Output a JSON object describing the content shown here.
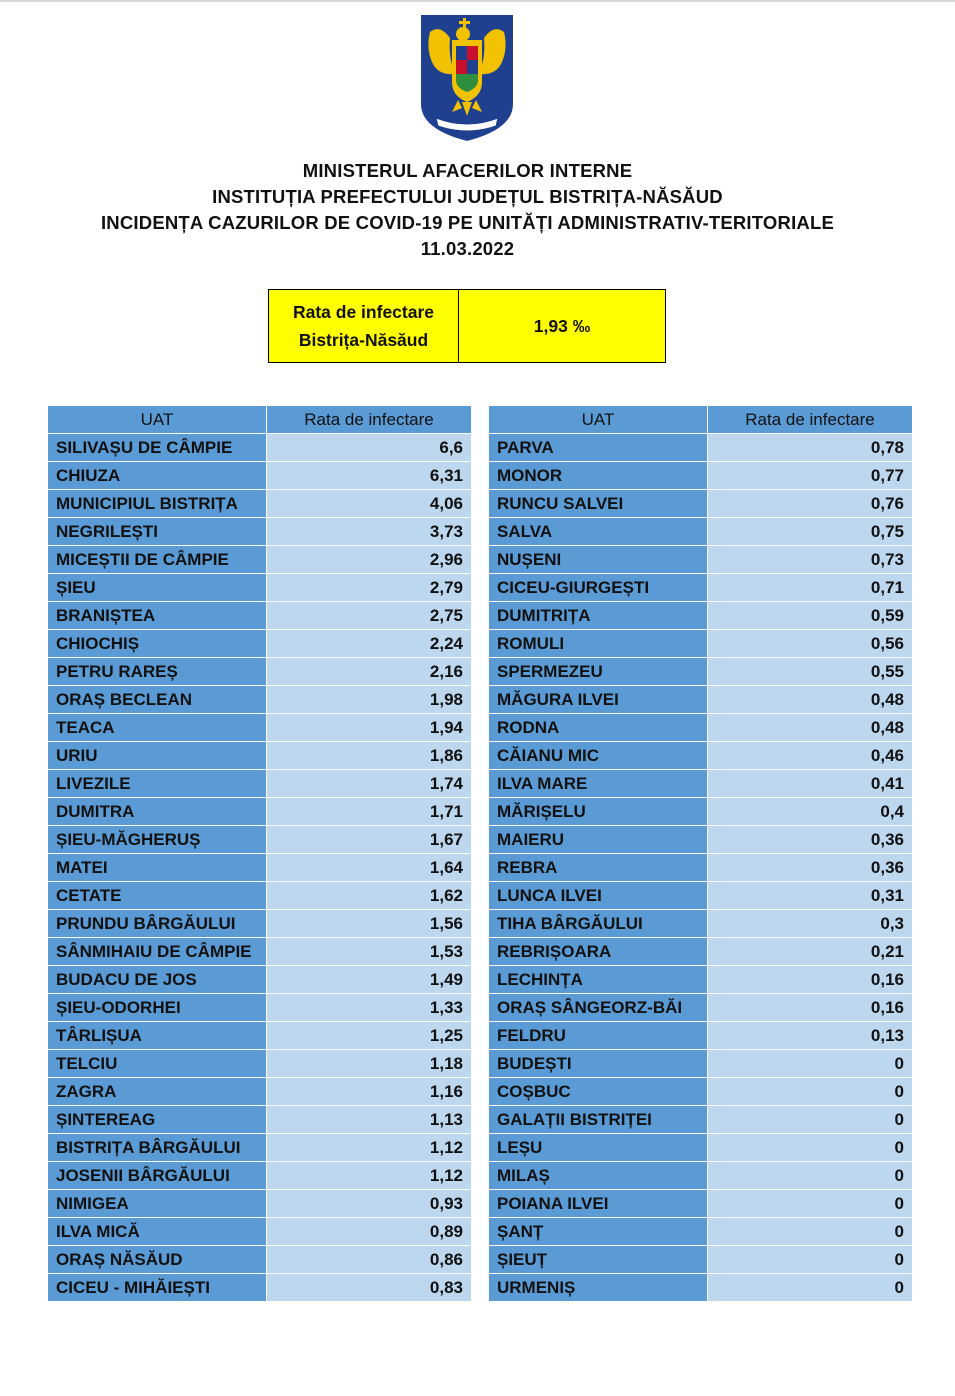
{
  "crest": {
    "icon": "romanian-coat-of-arms-emblem",
    "colors": {
      "shield": "#1f3f8f",
      "eagle": "#f2c200",
      "ribbon": "#1f3f8f"
    }
  },
  "heading": {
    "line1": "MINISTERUL AFACERILOR INTERNE",
    "line2": "INSTITUȚIA PREFECTULUI JUDEȚUL BISTRIȚA-NĂSĂUD",
    "line3": "INCIDENȚA CAZURILOR DE COVID-19 PE UNITĂȚI ADMINISTRATIV-TERITORIALE",
    "date": "11.03.2022"
  },
  "summary": {
    "label_line1": "Rata de infectare",
    "label_line2": "Bistrița-Năsăud",
    "value": "1,93 ‰"
  },
  "colors": {
    "header": "#5b9bd5",
    "name_cell": "#5b9bd5",
    "rate_cell": "#bdd7ee",
    "summary_bg": "#ffff00"
  },
  "columns": {
    "uat": "UAT",
    "rate": "Rata de infectare"
  },
  "table_left": [
    [
      "SILIVAȘU DE CÂMPIE",
      "6,6"
    ],
    [
      "CHIUZA",
      "6,31"
    ],
    [
      "MUNICIPIUL BISTRIȚA",
      "4,06"
    ],
    [
      "NEGRILEȘTI",
      "3,73"
    ],
    [
      "MICEȘTII DE CÂMPIE",
      "2,96"
    ],
    [
      "ȘIEU",
      "2,79"
    ],
    [
      "BRANIȘTEA",
      "2,75"
    ],
    [
      "CHIOCHIȘ",
      "2,24"
    ],
    [
      "PETRU RAREȘ",
      "2,16"
    ],
    [
      "ORAȘ BECLEAN",
      "1,98"
    ],
    [
      "TEACA",
      "1,94"
    ],
    [
      "URIU",
      "1,86"
    ],
    [
      "LIVEZILE",
      "1,74"
    ],
    [
      "DUMITRA",
      "1,71"
    ],
    [
      "ȘIEU-MĂGHERUȘ",
      "1,67"
    ],
    [
      "MATEI",
      "1,64"
    ],
    [
      "CETATE",
      "1,62"
    ],
    [
      "PRUNDU BÂRGĂULUI",
      "1,56"
    ],
    [
      "SÂNMIHAIU DE CÂMPIE",
      "1,53"
    ],
    [
      "BUDACU DE JOS",
      "1,49"
    ],
    [
      "ȘIEU-ODORHEI",
      "1,33"
    ],
    [
      "TÂRLIȘUA",
      "1,25"
    ],
    [
      "TELCIU",
      "1,18"
    ],
    [
      "ZAGRA",
      "1,16"
    ],
    [
      "ȘINTEREAG",
      "1,13"
    ],
    [
      "BISTRIȚA BÂRGĂULUI",
      "1,12"
    ],
    [
      "JOSENII BÂRGĂULUI",
      "1,12"
    ],
    [
      "NIMIGEA",
      "0,93"
    ],
    [
      "ILVA MICĂ",
      "0,89"
    ],
    [
      "ORAȘ NĂSĂUD",
      "0,86"
    ],
    [
      "CICEU - MIHĂIEȘTI",
      "0,83"
    ]
  ],
  "table_right": [
    [
      "PARVA",
      "0,78"
    ],
    [
      "MONOR",
      "0,77"
    ],
    [
      "RUNCU SALVEI",
      "0,76"
    ],
    [
      "SALVA",
      "0,75"
    ],
    [
      "NUȘENI",
      "0,73"
    ],
    [
      "CICEU-GIURGEȘTI",
      "0,71"
    ],
    [
      "DUMITRIȚA",
      "0,59"
    ],
    [
      "ROMULI",
      "0,56"
    ],
    [
      "SPERMEZEU",
      "0,55"
    ],
    [
      "MĂGURA ILVEI",
      "0,48"
    ],
    [
      "RODNA",
      "0,48"
    ],
    [
      "CĂIANU MIC",
      "0,46"
    ],
    [
      "ILVA MARE",
      "0,41"
    ],
    [
      "MĂRIȘELU",
      "0,4"
    ],
    [
      "MAIERU",
      "0,36"
    ],
    [
      "REBRA",
      "0,36"
    ],
    [
      "LUNCA ILVEI",
      "0,31"
    ],
    [
      "TIHA BÂRGĂULUI",
      "0,3"
    ],
    [
      "REBRIȘOARA",
      "0,21"
    ],
    [
      "LECHINȚA",
      "0,16"
    ],
    [
      "ORAȘ SÂNGEORZ-BĂI",
      "0,16"
    ],
    [
      "FELDRU",
      "0,13"
    ],
    [
      "BUDEȘTI",
      "0"
    ],
    [
      "COȘBUC",
      "0"
    ],
    [
      "GALAȚII BISTRIȚEI",
      "0"
    ],
    [
      "LEȘU",
      "0"
    ],
    [
      "MILAȘ",
      "0"
    ],
    [
      "POIANA ILVEI",
      "0"
    ],
    [
      "ȘANȚ",
      "0"
    ],
    [
      "ȘIEUȚ",
      "0"
    ],
    [
      "URMENIȘ",
      "0"
    ]
  ]
}
